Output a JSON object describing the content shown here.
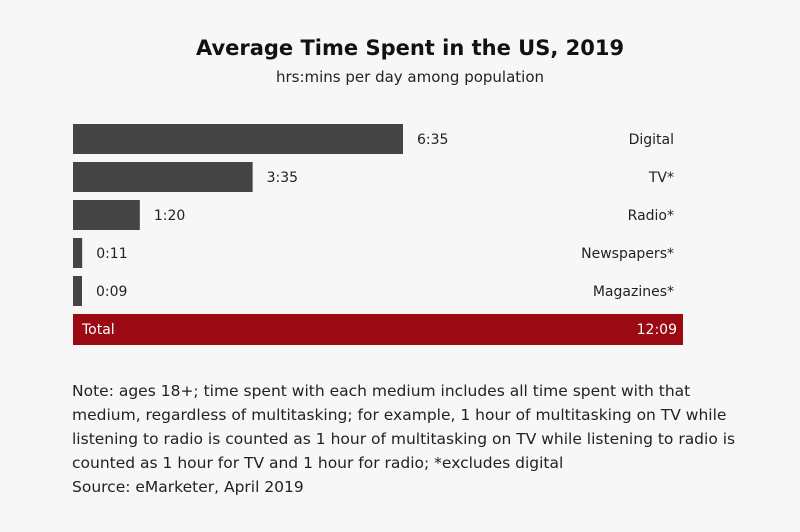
{
  "chart_data": {
    "type": "bar",
    "orientation": "horizontal",
    "title": "Average Time Spent in the US, 2019",
    "subtitle": "hrs:mins per day among population",
    "xlabel": "",
    "ylabel": "",
    "unit": "hrs:mins",
    "categories": [
      "Digital",
      "TV*",
      "Radio*",
      "Newspapers*",
      "Magazines*"
    ],
    "values_minutes": [
      395,
      215,
      80,
      11,
      9
    ],
    "value_labels": [
      "6:35",
      "3:35",
      "1:20",
      "0:11",
      "0:09"
    ],
    "total": {
      "label": "Total",
      "value_minutes": 729,
      "value_label": "12:09"
    },
    "grid": false,
    "legend": "none",
    "colors": {
      "bar": "#444444",
      "total": "#9b0a12",
      "background": "#f7f7f7"
    }
  },
  "note": "Note: ages 18+; time spent with each medium includes all time spent with that medium, regardless of multitasking; for example, 1 hour of multitasking on TV while listening to radio is counted as 1 hour of multitasking on TV while listening to radio is counted as 1 hour for TV and 1 hour for radio; *excludes digital",
  "source": "Source: eMarketer, April 2019"
}
